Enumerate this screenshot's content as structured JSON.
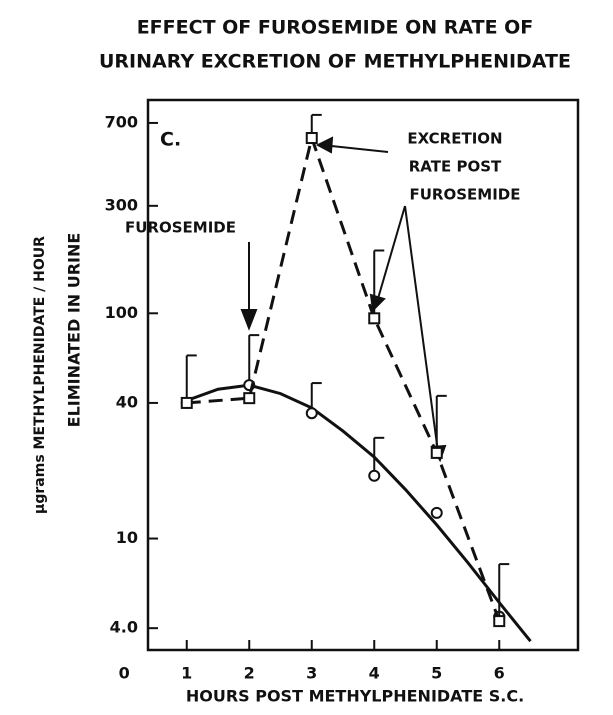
{
  "chart_data": {
    "type": "line",
    "title_lines": [
      "EFFECT OF FUROSEMIDE ON RATE OF",
      "URINARY EXCRETION OF METHYLPHENIDATE"
    ],
    "ylabel_lines": [
      "μgrams METHYLPHENIDATE / HOUR",
      "ELIMINATED IN URINE"
    ],
    "xlabel": "HOURS POST METHYLPHENIDATE S.C.",
    "panel_label": "C.",
    "annotations": [
      "FUROSEMIDE",
      "EXCRETION",
      "RATE POST",
      "FUROSEMIDE"
    ],
    "log_y": true,
    "xlim": [
      0.38,
      7.26
    ],
    "xticks": [
      0,
      1,
      2,
      3,
      4,
      5,
      6
    ],
    "ylim": [
      3.2,
      885
    ],
    "yticks": [
      {
        "value": 4,
        "label": "4.0"
      },
      10,
      40,
      100,
      300,
      700
    ],
    "x": [
      1,
      2,
      3,
      4,
      5,
      6
    ],
    "series": [
      {
        "color": "#111",
        "dash": false,
        "marker": "circle",
        "values": [
          40,
          48,
          36,
          19,
          13,
          4.5
        ],
        "errors": [
          25,
          32,
          13,
          9,
          null,
          null
        ]
      },
      {
        "color": "#111",
        "dash": true,
        "marker": "square",
        "values": [
          40,
          42,
          600,
          95,
          24,
          4.3
        ],
        "errors": [
          null,
          null,
          160,
          95,
          19,
          3.4
        ]
      }
    ],
    "curve": {
      "color": "#111",
      "x": [
        1,
        1.5,
        2,
        2.5,
        3,
        3.5,
        4,
        4.5,
        5,
        5.5,
        6,
        6.5
      ],
      "values": [
        41,
        46,
        48,
        44,
        38,
        30,
        23,
        16.5,
        11.5,
        7.8,
        5.2,
        3.5
      ]
    }
  }
}
